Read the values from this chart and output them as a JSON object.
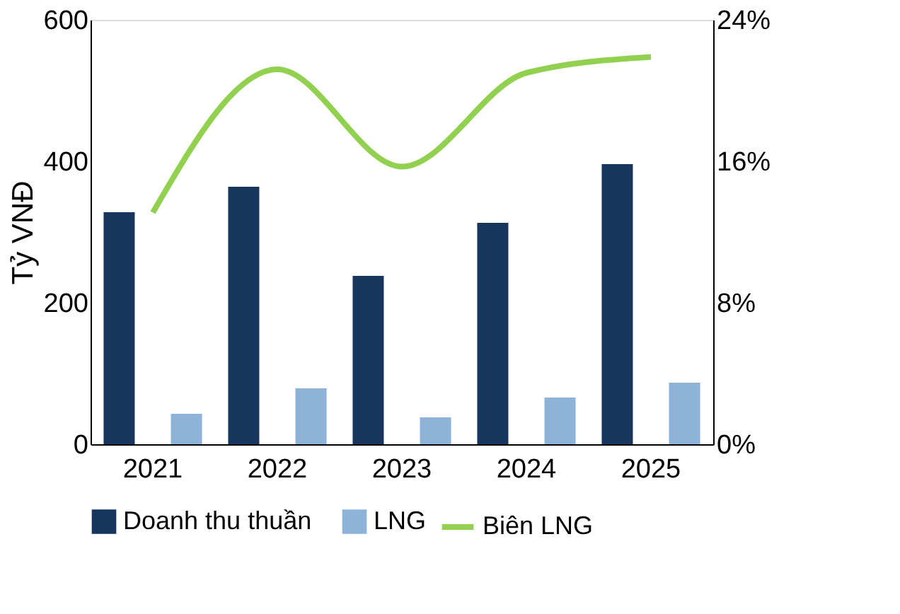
{
  "chart_data": {
    "type": "bar",
    "ylabel": "Tỷ VNĐ",
    "categories": [
      "2021",
      "2022",
      "2023",
      "2024",
      "2025"
    ],
    "series": [
      {
        "name": "Doanh thu thuần",
        "color": "#17365d",
        "values": [
          328,
          364,
          238,
          313,
          396
        ]
      },
      {
        "name": "LNG",
        "color": "#8db3d8",
        "values": [
          43,
          79,
          38,
          66,
          87
        ]
      },
      {
        "name": "Biên LNG",
        "type": "line",
        "axis": "y2",
        "color": "#92d050",
        "values": [
          13.1,
          21.2,
          15.7,
          21.0,
          21.9
        ]
      }
    ],
    "ylim": [
      0,
      600
    ],
    "yticks": [
      0,
      200,
      400,
      600
    ],
    "y2lim": [
      0,
      24
    ],
    "y2ticks": [
      {
        "value": 0,
        "label": "0%"
      },
      {
        "value": 8,
        "label": "8%"
      },
      {
        "value": 16,
        "label": "16%"
      },
      {
        "value": 24,
        "label": "24%"
      }
    ],
    "grid": false,
    "legend": "bottom"
  }
}
